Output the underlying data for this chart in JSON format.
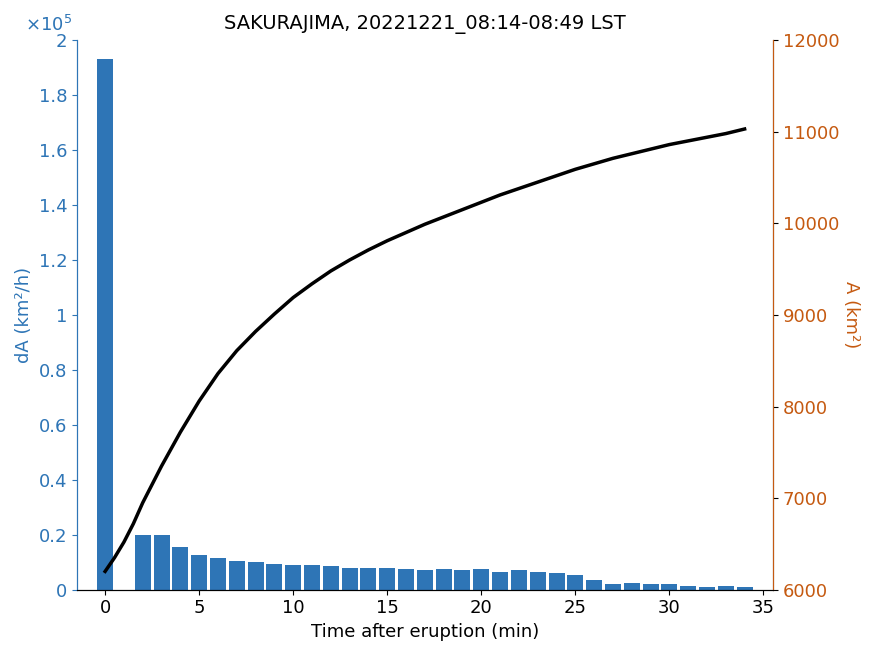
{
  "title": "SAKURAJIMA, 20221221_08:14-08:49 LST",
  "xlabel": "Time after eruption (min)",
  "ylabel_left": "dA (km²/h)",
  "ylabel_right": "A (km²)",
  "bar_color": "#2E75B6",
  "line_color": "#000000",
  "right_axis_color": "#C55A11",
  "left_axis_color": "#2E75B6",
  "bar_times": [
    0,
    2,
    3,
    4,
    5,
    6,
    7,
    8,
    9,
    10,
    11,
    12,
    13,
    14,
    15,
    16,
    17,
    18,
    19,
    20,
    21,
    22,
    23,
    24,
    25,
    26,
    27,
    28,
    29,
    30,
    31,
    32,
    33,
    34
  ],
  "bar_heights": [
    193000,
    20000,
    20000,
    15500,
    12500,
    11500,
    10500,
    10000,
    9500,
    9000,
    9000,
    8500,
    8000,
    8000,
    8000,
    7500,
    7000,
    7500,
    7000,
    7500,
    6500,
    7000,
    6500,
    6000,
    5500,
    3500,
    2000,
    2500,
    2000,
    2000,
    1500,
    1000,
    1500,
    1000
  ],
  "curve_times": [
    0,
    0.5,
    1,
    1.5,
    2,
    3,
    4,
    5,
    6,
    7,
    8,
    9,
    10,
    11,
    12,
    13,
    14,
    15,
    16,
    17,
    18,
    19,
    20,
    21,
    22,
    23,
    24,
    25,
    26,
    27,
    28,
    29,
    30,
    31,
    32,
    33,
    34
  ],
  "curve_values": [
    6200,
    6350,
    6520,
    6720,
    6950,
    7350,
    7720,
    8060,
    8360,
    8610,
    8820,
    9010,
    9190,
    9340,
    9480,
    9600,
    9710,
    9810,
    9900,
    9990,
    10070,
    10150,
    10230,
    10310,
    10380,
    10450,
    10520,
    10590,
    10650,
    10710,
    10760,
    10810,
    10860,
    10900,
    10940,
    10980,
    11030
  ],
  "xlim": [
    -1.5,
    35.5
  ],
  "ylim_left": [
    0,
    200000
  ],
  "ylim_right": [
    6000,
    12000
  ],
  "xticks": [
    0,
    5,
    10,
    15,
    20,
    25,
    30,
    35
  ],
  "yticks_left_vals": [
    0,
    20000,
    40000,
    60000,
    80000,
    100000,
    120000,
    140000,
    160000,
    180000,
    200000
  ],
  "yticks_left_labels": [
    "0",
    "0.2",
    "0.4",
    "0.6",
    "0.8",
    "1",
    "1.2",
    "1.4",
    "1.6",
    "1.8",
    "2"
  ],
  "yticks_right": [
    6000,
    7000,
    8000,
    9000,
    10000,
    11000,
    12000
  ],
  "bar_width": 0.85,
  "title_fontsize": 14,
  "label_fontsize": 13,
  "tick_fontsize": 13
}
